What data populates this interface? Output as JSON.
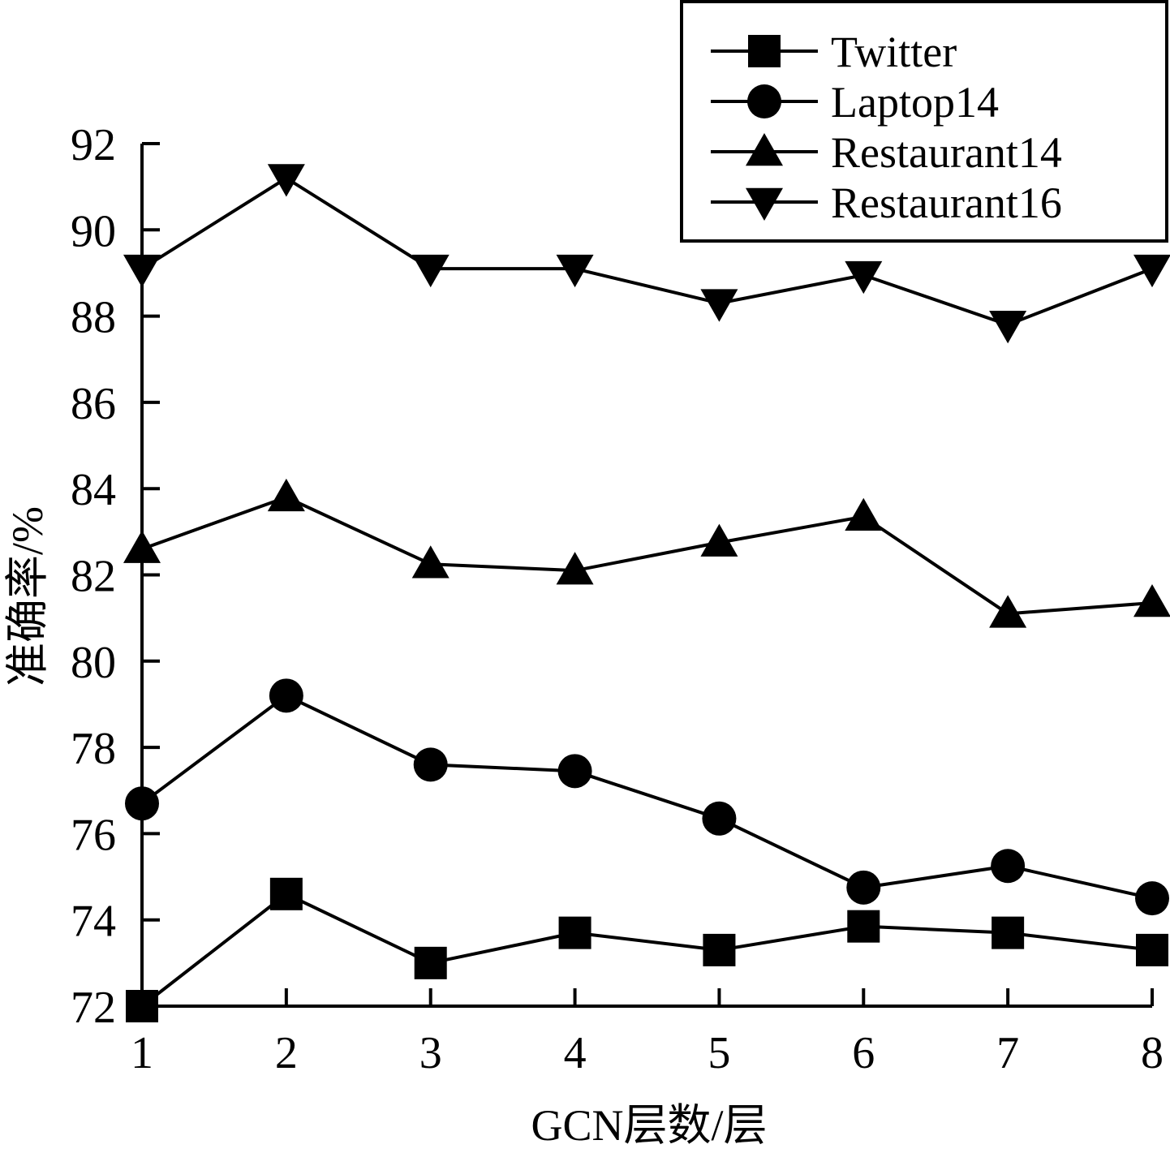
{
  "chart_data": {
    "type": "line",
    "xlabel": "GCN层数/层",
    "ylabel": "准确率/%",
    "x": [
      1,
      2,
      3,
      4,
      5,
      6,
      7,
      8
    ],
    "xticks": [
      "1",
      "2",
      "3",
      "4",
      "5",
      "6",
      "7",
      "8"
    ],
    "yticks": [
      "72",
      "74",
      "76",
      "78",
      "80",
      "82",
      "84",
      "86",
      "88",
      "90",
      "92"
    ],
    "ylim": [
      72,
      92
    ],
    "xlim": [
      1,
      8
    ],
    "grid": false,
    "legend_position": "top-right",
    "series": [
      {
        "name": "Twitter",
        "marker": "square",
        "values": [
          72.0,
          74.6,
          73.0,
          73.7,
          73.3,
          73.85,
          73.7,
          73.3
        ]
      },
      {
        "name": "Laptop14",
        "marker": "circle",
        "values": [
          76.7,
          79.2,
          77.6,
          77.45,
          76.35,
          74.75,
          75.25,
          74.5
        ]
      },
      {
        "name": "Restaurant14",
        "marker": "triangle-up",
        "values": [
          82.6,
          83.8,
          82.25,
          82.1,
          82.75,
          83.35,
          81.1,
          81.35
        ]
      },
      {
        "name": "Restaurant16",
        "marker": "triangle-down",
        "values": [
          89.1,
          91.2,
          89.1,
          89.1,
          88.3,
          88.95,
          87.8,
          89.1
        ]
      }
    ]
  }
}
